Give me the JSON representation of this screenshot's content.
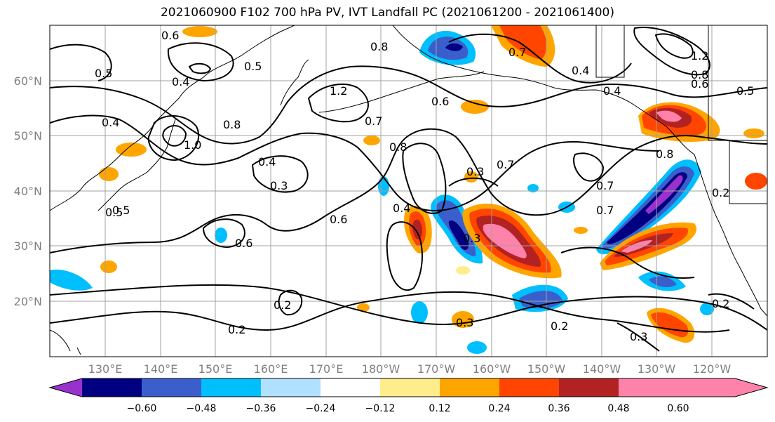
{
  "title": "2021060900 F102 700 hPa PV, IVT Landfall PC (2021061200 - 2021061400)",
  "lat_labels": [
    "60°N",
    "50°N",
    "40°N",
    "30°N",
    "20°N"
  ],
  "lon_labels": [
    "130°E",
    "140°E",
    "150°E",
    "160°E",
    "170°E",
    "180°W",
    "170°W",
    "160°W",
    "150°W",
    "140°W",
    "130°W",
    "120°W"
  ],
  "colorbar": {
    "colors": [
      "#9932cc",
      "#000080",
      "#3a5fcd",
      "#00bfff",
      "#b0e2ff",
      "#ffffff",
      "#ffec8b",
      "#ffa500",
      "#ff4500",
      "#b22222",
      "#ff82ab"
    ],
    "tick_labels": [
      "−0.60",
      "−0.48",
      "−0.36",
      "−0.24",
      "−0.12",
      "0.12",
      "0.24",
      "0.36",
      "0.48",
      "0.60"
    ]
  },
  "contour_labels": [
    "0.6",
    "0.5",
    "0.4",
    "0.5",
    "0.4",
    "0.8",
    "1.0",
    "1.2",
    "0.8",
    "0.7",
    "0.6",
    "0.4",
    "1.2",
    "0.8",
    "0.6",
    "0.5",
    "0.7",
    "0.8",
    "0.4",
    "0.3",
    "0.7",
    "0.3",
    "0.4",
    "0.6",
    "0.6",
    "0.3",
    "0.7",
    "0.7",
    "0.8",
    "0.5",
    "0.2",
    "0.3",
    "0.2",
    "0.2",
    "0.2",
    "0.3",
    "0.5",
    "0.2",
    "0.4"
  ]
}
